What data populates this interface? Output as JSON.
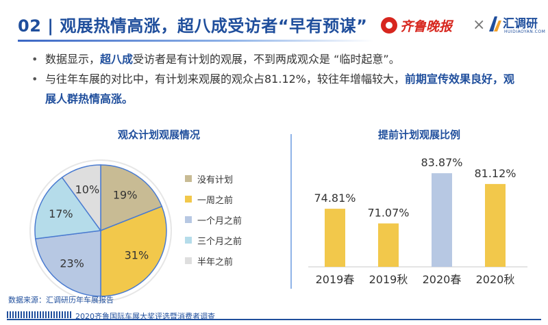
{
  "header": {
    "title": "02 | 观展热情高涨，超八成受访者“早有预谋”",
    "logo_left_text": "齐鲁晚报",
    "times": "×",
    "logo_right_text": "汇调研",
    "logo_right_sub": "HUIDIAOYAN.COM"
  },
  "bullets": {
    "b1_pre": "数据显示，",
    "b1_hl": "超八成",
    "b1_post": "受访者是有计划的观展，不到两成观众是 “临时起意”。",
    "b2_pre": "与往年车展的对比中，有计划来观展的观众占81.12%，较往年增幅较大，",
    "b2_hl": "前期宣传效果良好，观展人群热情高涨。"
  },
  "chart_data": [
    {
      "type": "pie",
      "title": "观众计划观展情况",
      "categories": [
        "没有计划",
        "一周之前",
        "一个月之前",
        "三个月之前",
        "半年之前"
      ],
      "values": [
        19,
        31,
        23,
        17,
        10
      ],
      "labels": [
        "19%",
        "31%",
        "23%",
        "17%",
        "10%"
      ],
      "colors": [
        "#c8bb94",
        "#f2c84b",
        "#b7c8e3",
        "#b5dcea",
        "#dedede"
      ],
      "legend": "right"
    },
    {
      "type": "bar",
      "title": "提前计划观展比例",
      "categories": [
        "2019春",
        "2019秋",
        "2020春",
        "2020秋"
      ],
      "values": [
        74.81,
        71.07,
        83.87,
        81.12
      ],
      "labels": [
        "74.81%",
        "71.07%",
        "83.87%",
        "81.12%"
      ],
      "colors": [
        "#f2c84b",
        "#f2c84b",
        "#b7c8e3",
        "#f2c84b"
      ],
      "ylim": [
        60,
        90
      ],
      "grid": false
    }
  ],
  "footer": {
    "source": "数据来源：汇调研历年车展报告",
    "survey": "2020齐鲁国际车展大奖评选暨消费者调查"
  }
}
